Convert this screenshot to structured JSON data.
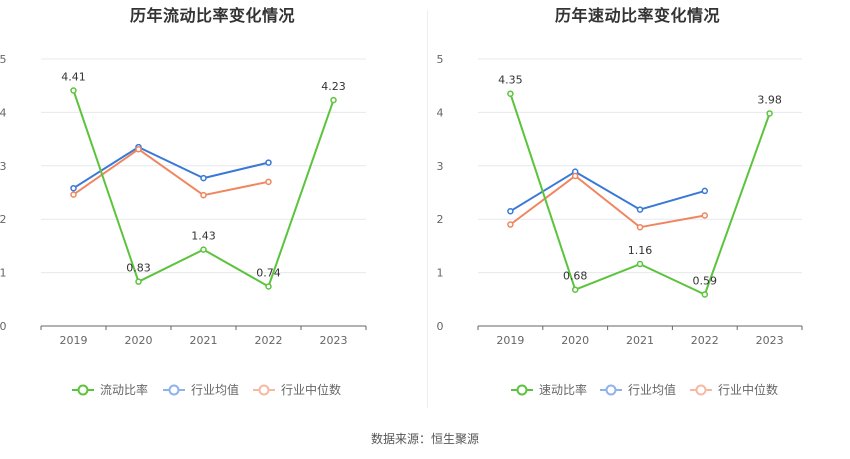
{
  "source": "数据来源：恒生聚源",
  "chart_data": [
    {
      "type": "line",
      "title": "历年流动比率变化情况",
      "categories": [
        "2019",
        "2020",
        "2021",
        "2022",
        "2023"
      ],
      "ylim": [
        0,
        5
      ],
      "yticks": [
        0,
        1,
        2,
        3,
        4,
        5
      ],
      "series": [
        {
          "name": "流动比率",
          "color": "#5cc33c",
          "values": [
            4.41,
            0.83,
            1.43,
            0.74,
            4.23
          ],
          "labels": [
            "4.41",
            "0.83",
            "1.43",
            "0.74",
            "4.23"
          ]
        },
        {
          "name": "行业均值",
          "color": "#3a78d8",
          "values": [
            2.58,
            3.35,
            2.77,
            3.06,
            null
          ]
        },
        {
          "name": "行业中位数",
          "color": "#f08660",
          "values": [
            2.46,
            3.31,
            2.45,
            2.7,
            null
          ]
        }
      ]
    },
    {
      "type": "line",
      "title": "历年速动比率变化情况",
      "categories": [
        "2019",
        "2020",
        "2021",
        "2022",
        "2023"
      ],
      "ylim": [
        0,
        5
      ],
      "yticks": [
        0,
        1,
        2,
        3,
        4,
        5
      ],
      "series": [
        {
          "name": "速动比率",
          "color": "#5cc33c",
          "values": [
            4.35,
            0.68,
            1.16,
            0.59,
            3.98
          ],
          "labels": [
            "4.35",
            "0.68",
            "1.16",
            "0.59",
            "3.98"
          ]
        },
        {
          "name": "行业均值",
          "color": "#3a78d8",
          "values": [
            2.15,
            2.89,
            2.18,
            2.53,
            null
          ]
        },
        {
          "name": "行业中位数",
          "color": "#f08660",
          "values": [
            1.9,
            2.81,
            1.85,
            2.07,
            null
          ]
        }
      ]
    }
  ]
}
